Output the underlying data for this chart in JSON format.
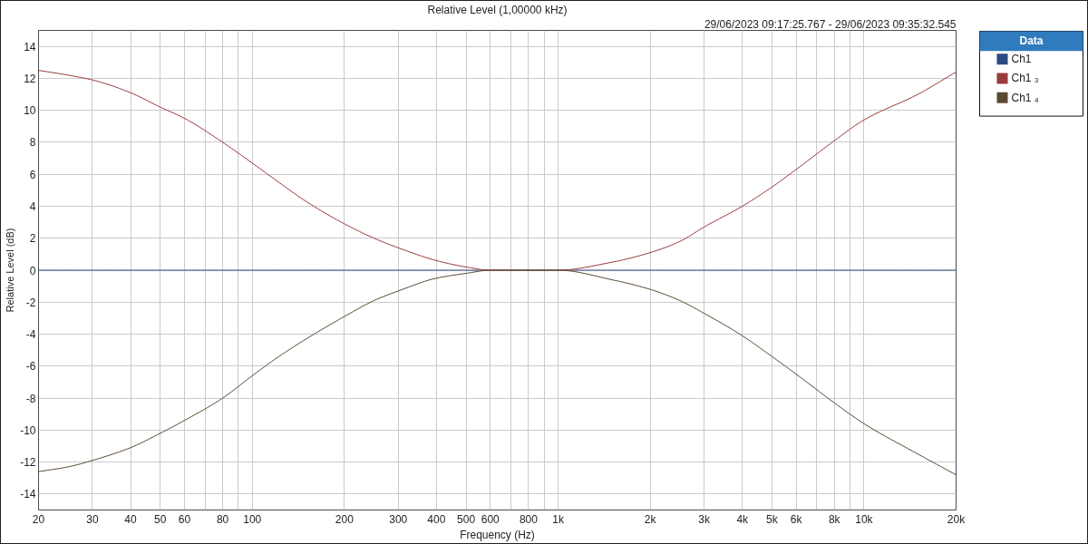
{
  "chart_data": {
    "type": "line",
    "title": "Relative Level (1,00000 kHz)",
    "subtitle": "29/06/2023 09:17:25.767 - 29/06/2023 09:35:32.545",
    "xlabel": "Frequency (Hz)",
    "ylabel": "Relative Level (dB)",
    "legend_title": "Data",
    "log": "x",
    "grid": true,
    "legend": "top right",
    "xlim": [
      20,
      20000
    ],
    "xticks": [
      20,
      30,
      40,
      50,
      60,
      {
        "value": 70,
        "label": null
      },
      80,
      {
        "value": 90,
        "label": null
      },
      100,
      200,
      300,
      400,
      500,
      600,
      {
        "value": 700,
        "label": null
      },
      800,
      {
        "value": 900,
        "label": null
      },
      {
        "value": 1000,
        "label": "1k"
      },
      {
        "value": 2000,
        "label": "2k"
      },
      {
        "value": 3000,
        "label": "3k"
      },
      {
        "value": 4000,
        "label": "4k"
      },
      {
        "value": 5000,
        "label": "5k"
      },
      {
        "value": 6000,
        "label": "6k"
      },
      {
        "value": 7000,
        "label": null
      },
      {
        "value": 8000,
        "label": "8k"
      },
      {
        "value": 9000,
        "label": null
      },
      {
        "value": 10000,
        "label": "10k"
      },
      {
        "value": 20000,
        "label": "20k"
      }
    ],
    "ylim": [
      -15,
      15
    ],
    "yticks": [
      -14,
      -12,
      -10,
      -8,
      -6,
      -4,
      -2,
      0,
      2,
      4,
      6,
      8,
      10,
      12,
      14
    ],
    "x": [
      20,
      25,
      30,
      40,
      50,
      60,
      80,
      100,
      120,
      150,
      200,
      250,
      300,
      400,
      500,
      600,
      800,
      1000,
      1500,
      2000,
      2500,
      3000,
      4000,
      5000,
      6000,
      8000,
      10000,
      15000,
      20000
    ],
    "series": [
      {
        "name": "Ch1",
        "color": "#2c4a80",
        "values": [
          0,
          0,
          0,
          0,
          0,
          0,
          0,
          0,
          0,
          0,
          0,
          0,
          0,
          0,
          0,
          0,
          0,
          0,
          0,
          0,
          0,
          0,
          0,
          0,
          0,
          0,
          0,
          0,
          0
        ]
      },
      {
        "name": "Ch1 ₃",
        "color": "#9a3a3a",
        "values": [
          12.5,
          12.2,
          11.9,
          11.1,
          10.2,
          9.5,
          8.0,
          6.7,
          5.6,
          4.3,
          2.9,
          2.0,
          1.4,
          0.6,
          0.2,
          0.0,
          0.0,
          0.0,
          0.5,
          1.1,
          1.8,
          2.7,
          4.0,
          5.2,
          6.3,
          8.1,
          9.4,
          11.0,
          12.4
        ]
      },
      {
        "name": "Ch1 ₄",
        "color": "#5a4a32",
        "values": [
          -12.6,
          -12.3,
          -11.9,
          -11.1,
          -10.2,
          -9.4,
          -8.0,
          -6.6,
          -5.5,
          -4.3,
          -2.9,
          -1.9,
          -1.3,
          -0.5,
          -0.2,
          0.0,
          0.0,
          0.0,
          -0.6,
          -1.2,
          -1.9,
          -2.7,
          -4.1,
          -5.4,
          -6.5,
          -8.3,
          -9.6,
          -11.5,
          -12.8
        ]
      }
    ]
  }
}
